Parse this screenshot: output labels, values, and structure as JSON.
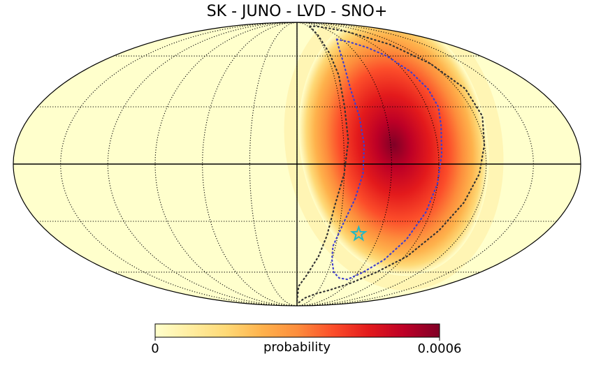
{
  "chart_data": {
    "type": "heatmap",
    "projection": "mollweide",
    "title": "SK - JUNO - LVD - SNO+",
    "colorbar": {
      "label": "probability",
      "min": 0,
      "max": 0.0006,
      "min_label": "0",
      "max_label": "0.0006",
      "colormap": "YlOrRd",
      "colors": [
        "#ffffcc",
        "#ffeda0",
        "#fed976",
        "#feb24c",
        "#fd8d3c",
        "#fc4e2a",
        "#e31a1c",
        "#bd0026",
        "#800026"
      ]
    },
    "graticule": {
      "meridians_deg": [
        -150,
        -120,
        -90,
        -60,
        -30,
        0,
        30,
        60,
        90,
        120,
        150
      ],
      "parallels_deg": [
        -60,
        -30,
        0,
        30,
        60
      ]
    },
    "probability_blob": {
      "center_lon_deg": 62,
      "center_lat_deg": 10,
      "tilt_deg": -10,
      "peak": 0.00058
    },
    "best_fit": {
      "lon_deg": 45,
      "lat_deg": -37,
      "marker": "star",
      "color": "#20b8c4"
    },
    "contours": [
      {
        "name": "inner-contour",
        "color": "#4040cc",
        "points": [
          [
            53,
            72
          ],
          [
            65,
            70
          ],
          [
            78,
            66
          ],
          [
            88,
            60
          ],
          [
            95,
            50
          ],
          [
            98,
            40
          ],
          [
            98,
            30
          ],
          [
            95,
            20
          ],
          [
            92,
            5
          ],
          [
            90,
            -10
          ],
          [
            87,
            -25
          ],
          [
            82,
            -40
          ],
          [
            75,
            -52
          ],
          [
            65,
            -60
          ],
          [
            55,
            -65
          ],
          [
            45,
            -64
          ],
          [
            36,
            -60
          ],
          [
            30,
            -52
          ],
          [
            28,
            -44
          ],
          [
            32,
            -32
          ],
          [
            38,
            -18
          ],
          [
            42,
            -5
          ],
          [
            43,
            10
          ],
          [
            42,
            25
          ],
          [
            40,
            40
          ],
          [
            42,
            55
          ],
          [
            46,
            65
          ]
        ]
      },
      {
        "name": "outer-contour",
        "color": "#333333",
        "points": [
          [
            35,
            84
          ],
          [
            50,
            84
          ],
          [
            70,
            82
          ],
          [
            90,
            78
          ],
          [
            110,
            68
          ],
          [
            120,
            55
          ],
          [
            126,
            40
          ],
          [
            125,
            25
          ],
          [
            120,
            10
          ],
          [
            116,
            -5
          ],
          [
            110,
            -20
          ],
          [
            102,
            -35
          ],
          [
            92,
            -50
          ],
          [
            78,
            -60
          ],
          [
            62,
            -68
          ],
          [
            45,
            -73
          ],
          [
            30,
            -76
          ],
          [
            15,
            -80
          ],
          [
            5,
            -85
          ],
          [
            0,
            -84
          ],
          [
            2,
            -70
          ],
          [
            10,
            -62
          ],
          [
            18,
            -50
          ],
          [
            22,
            -38
          ],
          [
            25,
            -22
          ],
          [
            30,
            -5
          ],
          [
            33,
            12
          ],
          [
            33,
            30
          ],
          [
            34,
            48
          ],
          [
            33,
            62
          ],
          [
            32,
            75
          ]
        ]
      }
    ]
  }
}
